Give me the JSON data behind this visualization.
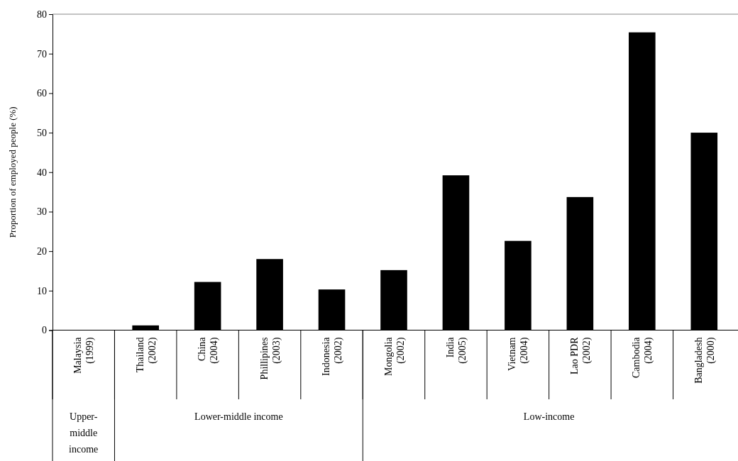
{
  "chart_data": {
    "type": "bar",
    "ylabel": "Proportion of employed people (%)",
    "categories": [
      "Malaysia (1999)",
      "Thailand (2002)",
      "China (2004)",
      "Phillipines (2003)",
      "Indonesia (2002)",
      "Mongolia (2002)",
      "India (2005)",
      "Vietnam (2004)",
      "Lao PDR (2002)",
      "Cambodia (2004)",
      "Bangladesh (2000)"
    ],
    "values": [
      0,
      1.2,
      12.2,
      18.0,
      10.3,
      15.2,
      39.2,
      22.6,
      33.7,
      75.4,
      50.0
    ],
    "color": "#000000",
    "ylim": [
      0,
      80
    ],
    "yticks": [
      0,
      10,
      20,
      30,
      40,
      50,
      60,
      70,
      80
    ],
    "annotations": [
      "Upper-middle income",
      "Lower-middle income",
      "Low-income"
    ]
  }
}
